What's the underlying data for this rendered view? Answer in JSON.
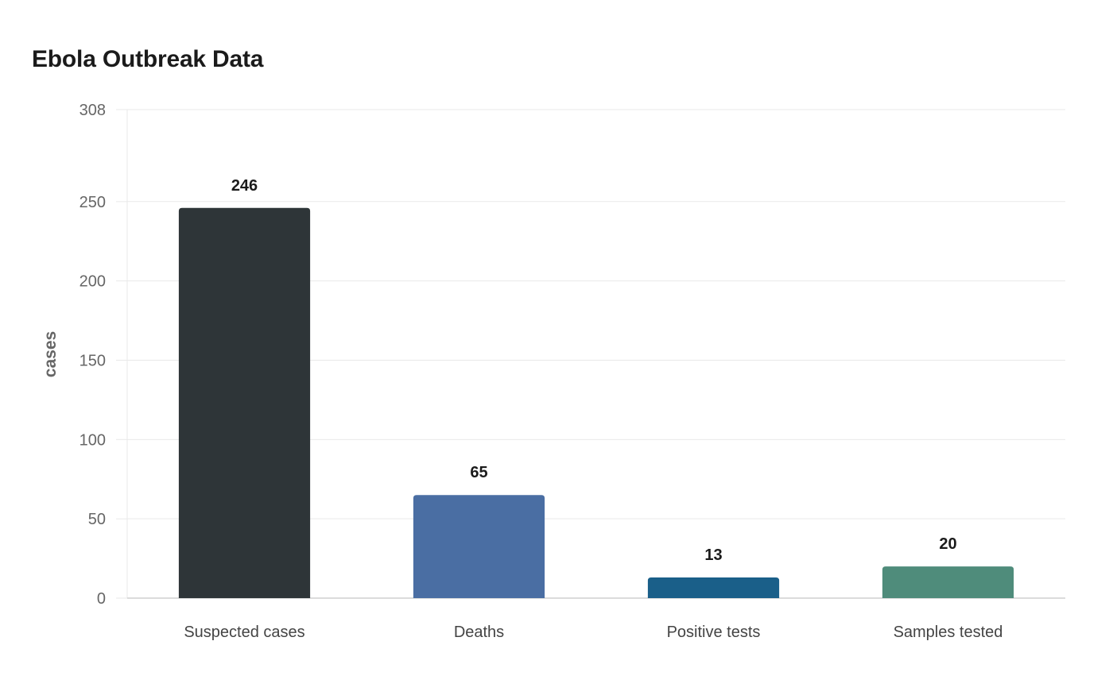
{
  "chart_data": {
    "type": "bar",
    "title": "Ebola Outbreak Data",
    "xlabel": "",
    "ylabel": "cases",
    "categories": [
      "Suspected cases",
      "Deaths",
      "Positive tests",
      "Samples tested"
    ],
    "values": [
      246,
      65,
      13,
      20
    ],
    "colors": [
      "#2e3538",
      "#4a6ea3",
      "#1a5f89",
      "#4f8c7b"
    ],
    "ylim": [
      0,
      308
    ],
    "yticks": [
      0,
      50,
      100,
      150,
      200,
      250,
      308
    ],
    "grid": true,
    "legend": "none"
  }
}
